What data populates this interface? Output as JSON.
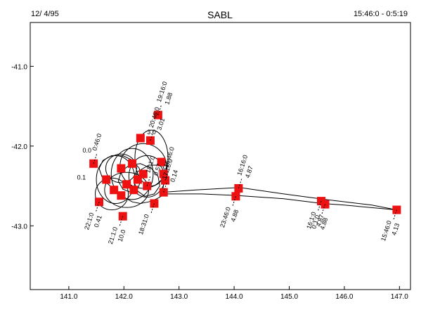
{
  "header": {
    "date": "12/ 4/95",
    "title": "SABL",
    "time_range": "15:46:0 - 0:5:19"
  },
  "chart_data": {
    "type": "scatter",
    "title": "SABL",
    "xlabel": "",
    "ylabel": "",
    "xlim": [
      140.3,
      147.2
    ],
    "ylim": [
      -43.8,
      -40.45
    ],
    "x_ticks": [
      "141.0",
      "142.0",
      "143.0",
      "144.0",
      "145.0",
      "146.0",
      "147.0"
    ],
    "y_ticks": [
      "-41.0",
      "-42.0",
      "-43.0"
    ],
    "grid": false,
    "marker_color": "#ee1111",
    "track_color": "#000000",
    "track": [
      [
        146.95,
        -42.8
      ],
      [
        146.0,
        -42.74
      ],
      [
        145.6,
        -42.72
      ],
      [
        144.9,
        -42.66
      ],
      [
        144.05,
        -42.62
      ],
      [
        143.4,
        -42.6
      ],
      [
        142.75,
        -42.6
      ],
      [
        142.6,
        -42.66
      ],
      [
        142.45,
        -42.7
      ],
      [
        142.3,
        -42.72
      ],
      [
        142.15,
        -42.7
      ],
      [
        142.0,
        -42.64
      ],
      [
        141.85,
        -42.56
      ],
      [
        141.7,
        -42.47
      ],
      [
        141.6,
        -42.38
      ],
      [
        141.55,
        -42.28
      ],
      [
        141.62,
        -42.18
      ],
      [
        141.78,
        -42.12
      ],
      [
        141.98,
        -42.12
      ],
      [
        142.16,
        -42.18
      ],
      [
        142.28,
        -42.28
      ],
      [
        142.32,
        -42.4
      ],
      [
        142.26,
        -42.52
      ],
      [
        142.12,
        -42.58
      ],
      [
        141.98,
        -42.54
      ],
      [
        141.9,
        -42.44
      ],
      [
        141.95,
        -42.32
      ],
      [
        142.1,
        -42.24
      ],
      [
        142.3,
        -42.22
      ],
      [
        142.5,
        -42.28
      ],
      [
        142.62,
        -42.38
      ],
      [
        142.65,
        -42.5
      ],
      [
        142.55,
        -42.6
      ],
      [
        142.38,
        -42.63
      ],
      [
        142.24,
        -42.56
      ],
      [
        142.18,
        -42.44
      ],
      [
        142.25,
        -42.32
      ],
      [
        142.45,
        -42.24
      ],
      [
        142.66,
        -42.24
      ],
      [
        142.75,
        -42.35
      ],
      [
        142.72,
        -42.48
      ],
      [
        142.7,
        -42.58
      ],
      [
        143.3,
        -42.55
      ],
      [
        144.1,
        -42.52
      ],
      [
        144.9,
        -42.6
      ],
      [
        145.65,
        -42.67
      ],
      [
        146.5,
        -42.74
      ],
      [
        146.95,
        -42.8
      ]
    ],
    "points": [
      {
        "x": 146.95,
        "y": -42.8,
        "label": "15:46:0",
        "value": "4.13"
      },
      {
        "x": 145.58,
        "y": -42.69,
        "label": "16:1:0",
        "value": "4.87"
      },
      {
        "x": 145.65,
        "y": -42.73,
        "label": "0:1:0",
        "value": "4.88"
      },
      {
        "x": 144.08,
        "y": -42.53,
        "label": "16:16:0",
        "value": "4.87"
      },
      {
        "x": 144.03,
        "y": -42.63,
        "label": "23:46:0",
        "value": "4.88"
      },
      {
        "x": 142.72,
        "y": -42.58,
        "label": "17:16:0",
        "value": "0.14"
      },
      {
        "x": 142.75,
        "y": -42.43,
        "label": "16:46:0",
        "value": ""
      },
      {
        "x": 142.62,
        "y": -41.61,
        "label": "19:16:0",
        "value": "1.88"
      },
      {
        "x": 142.48,
        "y": -41.93,
        "label": "20:46:0",
        "value": "3.01"
      },
      {
        "x": 142.3,
        "y": -41.9,
        "label": "",
        "value": ""
      },
      {
        "x": 142.68,
        "y": -42.2,
        "label": "",
        "value": ""
      },
      {
        "x": 142.72,
        "y": -42.35,
        "label": "",
        "value": ""
      },
      {
        "x": 142.55,
        "y": -42.72,
        "label": "18:31:0",
        "value": ""
      },
      {
        "x": 142.42,
        "y": -42.5,
        "label": "18:1:0",
        "value": "0.57"
      },
      {
        "x": 142.35,
        "y": -42.35,
        "label": "",
        "value": ""
      },
      {
        "x": 142.15,
        "y": -42.22,
        "label": "",
        "value": ""
      },
      {
        "x": 141.95,
        "y": -42.28,
        "label": "",
        "value": ""
      },
      {
        "x": 141.68,
        "y": -42.42,
        "label": "",
        "value": ""
      },
      {
        "x": 141.45,
        "y": -42.22,
        "label": "0:46:0",
        "value": ""
      },
      {
        "x": 141.55,
        "y": -42.7,
        "label": "22:1:0",
        "value": "0.41"
      },
      {
        "x": 141.95,
        "y": -42.62,
        "label": "",
        "value": ""
      },
      {
        "x": 142.05,
        "y": -42.48,
        "label": "",
        "value": ""
      },
      {
        "x": 142.18,
        "y": -42.55,
        "label": "",
        "value": ""
      },
      {
        "x": 141.98,
        "y": -42.88,
        "label": "21:1:0",
        "value": "10.0"
      },
      {
        "x": 142.25,
        "y": -42.42,
        "label": "",
        "value": ""
      },
      {
        "x": 141.82,
        "y": -42.55,
        "label": "",
        "value": ""
      }
    ],
    "partial_labels": [
      "0.0",
      "0.1",
      "3.0"
    ]
  }
}
